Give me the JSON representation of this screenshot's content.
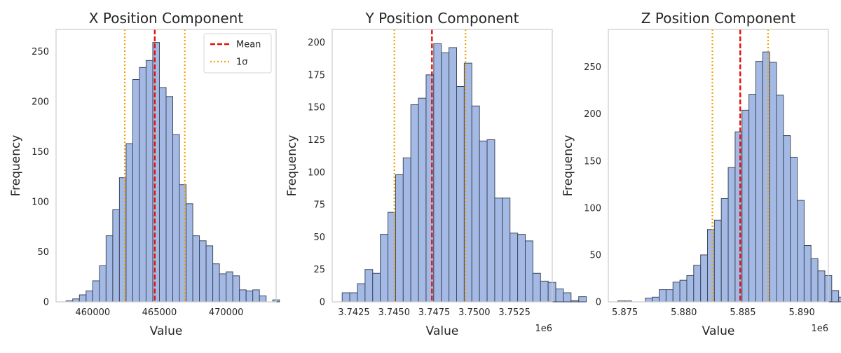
{
  "chart_data": [
    {
      "type": "bar",
      "title": "X Position Component",
      "xlabel": "Value",
      "ylabel": "Frequency",
      "xlim": [
        457250,
        473750
      ],
      "ylim": [
        0,
        272
      ],
      "xticks": [
        460000,
        465000,
        470000
      ],
      "xtick_labels": [
        "460000",
        "465000",
        "470000"
      ],
      "yticks": [
        0,
        50,
        100,
        150,
        200,
        250
      ],
      "ytick_labels": [
        "0",
        "50",
        "100",
        "150",
        "200",
        "250"
      ],
      "offset_label": "",
      "bins": {
        "start": 458000,
        "width": 500
      },
      "values": [
        1,
        3,
        7,
        11,
        21,
        36,
        66,
        92,
        124,
        158,
        222,
        234,
        241,
        259,
        214,
        205,
        167,
        117,
        98,
        66,
        61,
        56,
        38,
        28,
        30,
        26,
        12,
        11,
        12,
        6,
        0,
        2
      ],
      "mean": 464650,
      "sigma_lines": [
        462400,
        466900
      ],
      "legend": {
        "position": "top-right",
        "entries": [
          "Mean",
          "1σ"
        ]
      },
      "grid": false
    },
    {
      "type": "bar",
      "title": "Y Position Component",
      "xlabel": "Value",
      "ylabel": "Frequency",
      "xlim": [
        3741150,
        3754850
      ],
      "ylim": [
        0,
        210
      ],
      "xticks": [
        3742500,
        3745000,
        3747500,
        3750000,
        3752500
      ],
      "xtick_labels": [
        "3.7425",
        "3.7450",
        "3.7475",
        "3.7500",
        "3.7525"
      ],
      "yticks": [
        0,
        25,
        50,
        75,
        100,
        125,
        150,
        175,
        200
      ],
      "ytick_labels": [
        "0",
        "25",
        "50",
        "75",
        "100",
        "125",
        "150",
        "175",
        "200"
      ],
      "offset_label": "1e6",
      "bins": {
        "start": 3741770,
        "width": 475
      },
      "values": [
        7,
        7,
        14,
        25,
        22,
        52,
        69,
        98,
        111,
        152,
        157,
        175,
        199,
        192,
        196,
        166,
        184,
        151,
        124,
        125,
        80,
        80,
        53,
        52,
        47,
        22,
        16,
        15,
        10,
        7,
        1,
        4
      ],
      "mean": 3747360,
      "sigma_lines": [
        3745020,
        3749450
      ],
      "legend": null,
      "grid": false
    },
    {
      "type": "bar",
      "title": "Z Position Component",
      "xlabel": "Value",
      "ylabel": "Frequency",
      "xlim": [
        5873600,
        5892250
      ],
      "ylim": [
        0,
        290
      ],
      "xticks": [
        5875000,
        5880000,
        5885000,
        5890000
      ],
      "xtick_labels": [
        "5.875",
        "5.880",
        "5.885",
        "5.890"
      ],
      "yticks": [
        0,
        50,
        100,
        150,
        200,
        250
      ],
      "ytick_labels": [
        "0",
        "50",
        "100",
        "150",
        "200",
        "250"
      ],
      "offset_label": "1e6",
      "bins": {
        "start": 5874400,
        "width": 585
      },
      "values": [
        1,
        1,
        0,
        0,
        4,
        5,
        13,
        13,
        21,
        23,
        28,
        39,
        50,
        77,
        87,
        110,
        143,
        181,
        204,
        221,
        256,
        266,
        255,
        220,
        177,
        154,
        108,
        60,
        46,
        33,
        28,
        12,
        5,
        1
      ],
      "mean": 5884780,
      "sigma_lines": [
        5882420,
        5887140
      ],
      "legend": null,
      "grid": false
    }
  ],
  "colors": {
    "bar_fill": "#a4bae4",
    "bar_edge": "#3e4a5e",
    "mean_line": "#e3120b",
    "sigma_line": "#f5a100",
    "axes_frame": "#cccccc"
  }
}
